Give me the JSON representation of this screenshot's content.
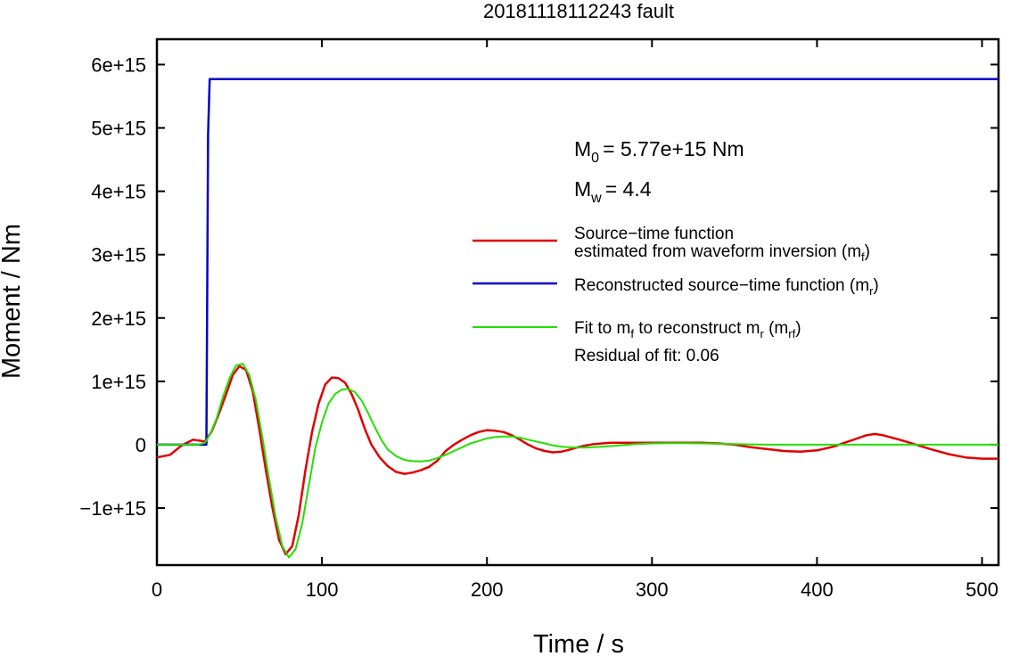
{
  "chart_data": {
    "type": "line",
    "title": "20181118112243 fault",
    "xlabel": "Time / s",
    "ylabel": "Moment / Nm",
    "xlim": [
      0,
      510
    ],
    "ylim": [
      -1900000000000000.0,
      6400000000000000.0
    ],
    "x_ticks": [
      0,
      100,
      200,
      300,
      400,
      500
    ],
    "x_tick_labels": [
      "0",
      "100",
      "200",
      "300",
      "400",
      "500"
    ],
    "y_ticks": [
      -1000000000000000.0,
      0,
      1000000000000000.0,
      2000000000000000.0,
      3000000000000000.0,
      4000000000000000.0,
      5000000000000000.0,
      6000000000000000.0
    ],
    "y_tick_labels": [
      "−1e+15",
      "0",
      "1e+15",
      "2e+15",
      "3e+15",
      "4e+15",
      "5e+15",
      "6e+15"
    ],
    "grid": false,
    "legend_position": "right",
    "annotations": {
      "m0_symbol": "M",
      "m0_subscript": "0",
      "m0_value": "= 5.77e+15 Nm",
      "mw_symbol": "M",
      "mw_subscript": "w",
      "mw_value": "= 4.4",
      "residual": "Residual of fit: 0.06"
    },
    "legend": {
      "red_line1": "Source−time function",
      "red_line2_prefix": "estimated from waveform inversion (m",
      "red_line2_sub": "f",
      "red_line2_suffix": ")",
      "blue_prefix": "Reconstructed source−time function (m",
      "blue_sub": "r",
      "blue_suffix": ")",
      "green_part1": "Fit to m",
      "green_sub1": "f",
      "green_part2": " to reconstruct m",
      "green_sub2": "r",
      "green_part3": " (m",
      "green_sub3": "rf",
      "green_part4": ")"
    },
    "series": [
      {
        "id": "mf",
        "color": "#e00000",
        "x": [
          0,
          8,
          15,
          22,
          29,
          33,
          37,
          42,
          46,
          50,
          54,
          58,
          62,
          66,
          70,
          74,
          78,
          82,
          86,
          90,
          94,
          98,
          102,
          106,
          110,
          114,
          118,
          122,
          126,
          130,
          135,
          140,
          145,
          150,
          155,
          160,
          165,
          170,
          175,
          180,
          185,
          190,
          195,
          200,
          205,
          210,
          215,
          220,
          225,
          230,
          235,
          240,
          245,
          250,
          255,
          260,
          265,
          270,
          275,
          280,
          290,
          300,
          310,
          320,
          330,
          340,
          350,
          360,
          370,
          380,
          390,
          400,
          410,
          420,
          430,
          435,
          440,
          450,
          460,
          470,
          480,
          490,
          500,
          510
        ],
        "y": [
          -200000000000000.0,
          -160000000000000.0,
          -10000000000000.0,
          80000000000000.0,
          50000000000000.0,
          200000000000000.0,
          450000000000000.0,
          800000000000000.0,
          1100000000000000.0,
          1240000000000000.0,
          1180000000000000.0,
          850000000000000.0,
          250000000000000.0,
          -400000000000000.0,
          -1000000000000000.0,
          -1500000000000000.0,
          -1730000000000000.0,
          -1600000000000000.0,
          -1100000000000000.0,
          -400000000000000.0,
          200000000000000.0,
          650000000000000.0,
          950000000000000.0,
          1060000000000000.0,
          1050000000000000.0,
          980000000000000.0,
          800000000000000.0,
          550000000000000.0,
          250000000000000.0,
          0,
          -200000000000000.0,
          -340000000000000.0,
          -430000000000000.0,
          -460000000000000.0,
          -440000000000000.0,
          -400000000000000.0,
          -350000000000000.0,
          -250000000000000.0,
          -100000000000000.0,
          0,
          80000000000000.0,
          150000000000000.0,
          200000000000000.0,
          230000000000000.0,
          220000000000000.0,
          200000000000000.0,
          150000000000000.0,
          80000000000000.0,
          0,
          -60000000000000.0,
          -100000000000000.0,
          -120000000000000.0,
          -110000000000000.0,
          -80000000000000.0,
          -40000000000000.0,
          -10000000000000.0,
          10000000000000.0,
          20000000000000.0,
          30000000000000.0,
          30000000000000.0,
          30000000000000.0,
          30000000000000.0,
          30000000000000.0,
          30000000000000.0,
          30000000000000.0,
          20000000000000.0,
          0,
          -40000000000000.0,
          -70000000000000.0,
          -100000000000000.0,
          -110000000000000.0,
          -90000000000000.0,
          -30000000000000.0,
          60000000000000.0,
          150000000000000.0,
          170000000000000.0,
          150000000000000.0,
          80000000000000.0,
          0,
          -80000000000000.0,
          -150000000000000.0,
          -200000000000000.0,
          -220000000000000.0,
          -220000000000000.0
        ]
      },
      {
        "id": "mr",
        "color": "#0000c8",
        "x": [
          0,
          30,
          31,
          32,
          510
        ],
        "y": [
          0,
          0,
          4900000000000000.0,
          5770000000000000.0,
          5770000000000000.0
        ]
      },
      {
        "id": "mrf",
        "color": "#22e000",
        "x": [
          0,
          25,
          29,
          32,
          36,
          40,
          44,
          48,
          52,
          56,
          60,
          64,
          68,
          72,
          76,
          80,
          84,
          88,
          92,
          96,
          100,
          104,
          108,
          112,
          116,
          120,
          124,
          128,
          132,
          136,
          140,
          145,
          150,
          155,
          160,
          165,
          170,
          175,
          180,
          185,
          190,
          195,
          200,
          205,
          210,
          215,
          220,
          225,
          230,
          235,
          240,
          245,
          250,
          255,
          260,
          270,
          280,
          290,
          300,
          310,
          320,
          330,
          340,
          350,
          360,
          370,
          380,
          400,
          450,
          510
        ],
        "y": [
          0,
          0,
          30000000000000.0,
          150000000000000.0,
          400000000000000.0,
          750000000000000.0,
          1050000000000000.0,
          1250000000000000.0,
          1280000000000000.0,
          1100000000000000.0,
          700000000000000.0,
          100000000000000.0,
          -550000000000000.0,
          -1150000000000000.0,
          -1600000000000000.0,
          -1780000000000000.0,
          -1650000000000000.0,
          -1250000000000000.0,
          -650000000000000.0,
          -50000000000000.0,
          350000000000000.0,
          650000000000000.0,
          800000000000000.0,
          870000000000000.0,
          880000000000000.0,
          830000000000000.0,
          700000000000000.0,
          500000000000000.0,
          280000000000000.0,
          80000000000000.0,
          -80000000000000.0,
          -180000000000000.0,
          -240000000000000.0,
          -260000000000000.0,
          -265000000000000.0,
          -250000000000000.0,
          -210000000000000.0,
          -160000000000000.0,
          -100000000000000.0,
          -40000000000000.0,
          20000000000000.0,
          60000000000000.0,
          100000000000000.0,
          120000000000000.0,
          130000000000000.0,
          130000000000000.0,
          110000000000000.0,
          80000000000000.0,
          50000000000000.0,
          20000000000000.0,
          -10000000000000.0,
          -30000000000000.0,
          -40000000000000.0,
          -45000000000000.0,
          -45000000000000.0,
          -30000000000000.0,
          -10000000000000.0,
          10000000000000.0,
          20000000000000.0,
          25000000000000.0,
          25000000000000.0,
          20000000000000.0,
          15000000000000.0,
          10000000000000.0,
          5000000000000.0,
          0,
          0,
          0,
          0,
          0
        ]
      }
    ]
  }
}
